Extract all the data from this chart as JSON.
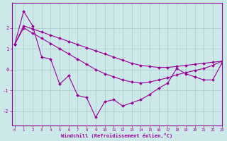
{
  "xlabel": "Windchill (Refroidissement éolien,°C)",
  "xlim": [
    -0.3,
    23
  ],
  "ylim": [
    -2.7,
    3.2
  ],
  "x_hours": [
    0,
    1,
    2,
    3,
    4,
    5,
    6,
    7,
    8,
    9,
    10,
    11,
    12,
    13,
    14,
    15,
    16,
    17,
    18,
    19,
    20,
    21,
    22,
    23
  ],
  "line_main_y": [
    1.2,
    2.8,
    2.1,
    0.6,
    0.5,
    -0.7,
    -0.3,
    -1.25,
    -1.35,
    -2.3,
    -1.55,
    -1.45,
    -1.75,
    -1.6,
    -1.45,
    -1.2,
    -0.9,
    -0.65,
    0.05,
    -0.2,
    -0.35,
    -0.5,
    -0.5,
    0.3
  ],
  "line_upper_y": [
    1.2,
    2.1,
    1.95,
    1.8,
    1.65,
    1.5,
    1.35,
    1.2,
    1.05,
    0.9,
    0.75,
    0.6,
    0.45,
    0.3,
    0.2,
    0.15,
    0.1,
    0.1,
    0.15,
    0.2,
    0.25,
    0.3,
    0.35,
    0.4
  ],
  "line_lower_y": [
    1.2,
    2.0,
    1.75,
    1.5,
    1.25,
    1.0,
    0.75,
    0.5,
    0.25,
    0.0,
    -0.2,
    -0.35,
    -0.5,
    -0.6,
    -0.65,
    -0.6,
    -0.5,
    -0.4,
    -0.25,
    -0.15,
    -0.05,
    0.05,
    0.2,
    0.4
  ],
  "line_color": "#990099",
  "bg_color": "#cce8e8",
  "grid_color": "#aacccc",
  "yticks": [
    -2,
    -1,
    0,
    1,
    2
  ],
  "xticks": [
    0,
    1,
    2,
    3,
    4,
    5,
    6,
    7,
    8,
    9,
    10,
    11,
    12,
    13,
    14,
    15,
    16,
    17,
    18,
    19,
    20,
    21,
    22,
    23
  ]
}
